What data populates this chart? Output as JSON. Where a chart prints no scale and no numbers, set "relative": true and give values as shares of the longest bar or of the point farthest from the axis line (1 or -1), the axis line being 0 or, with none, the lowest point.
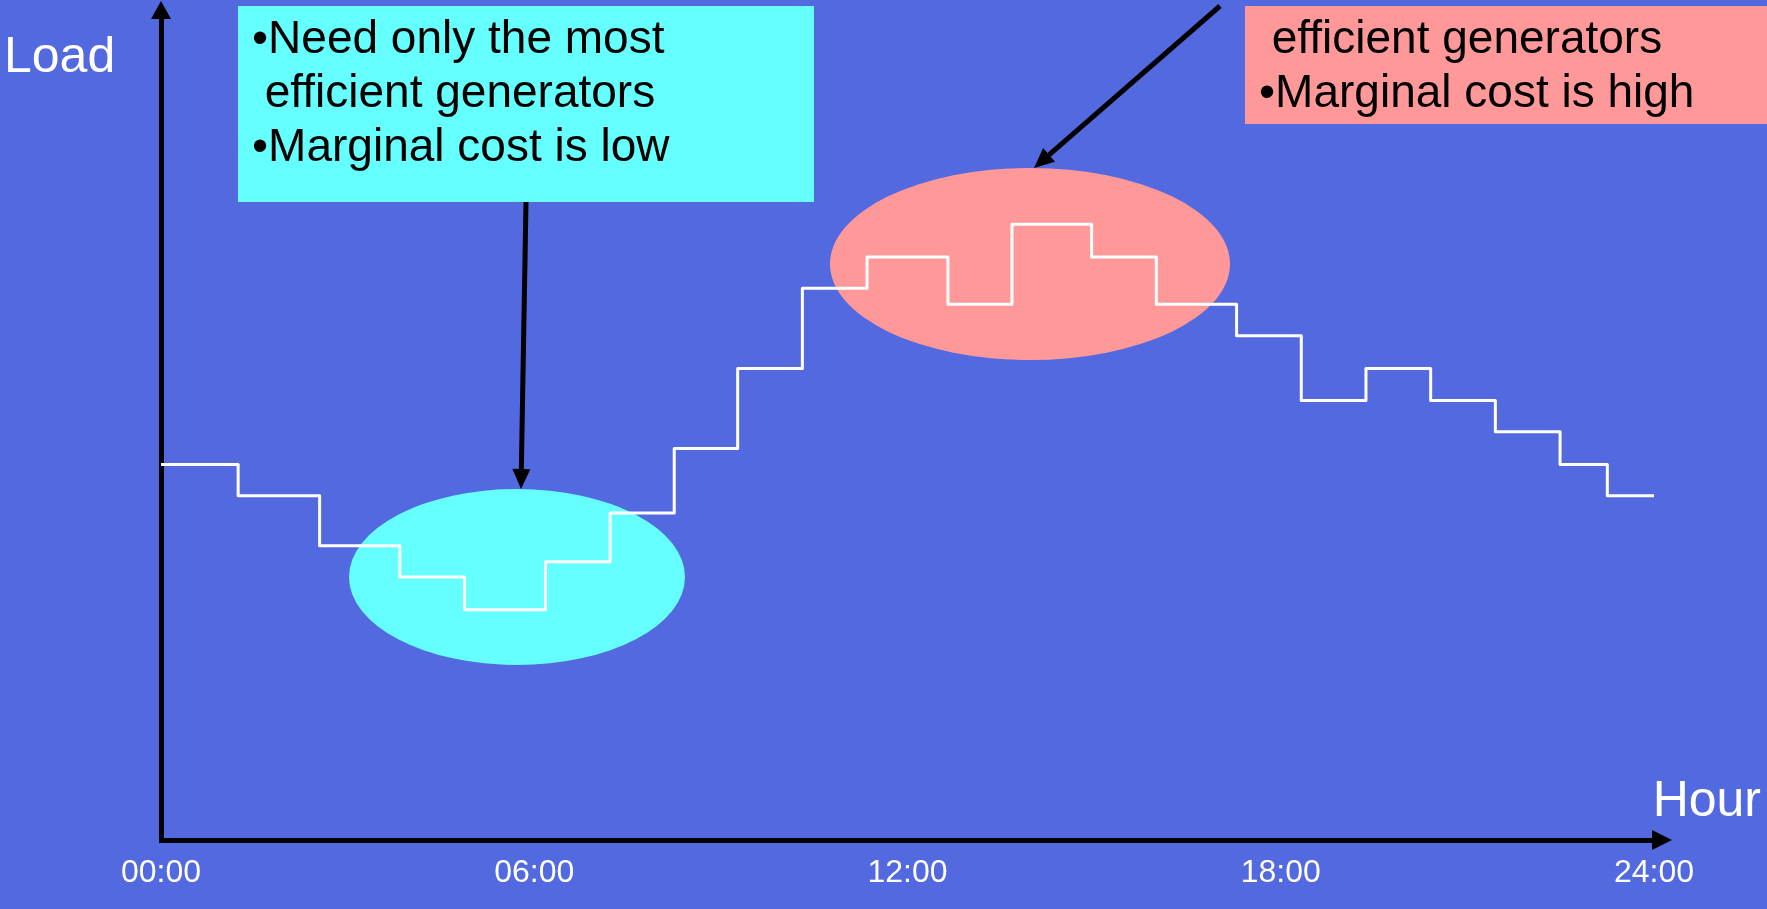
{
  "chart_data": {
    "type": "step",
    "xlabel": "Hour",
    "ylabel": "Load",
    "relative": true,
    "x": [
      0,
      1.24,
      2.55,
      3.84,
      4.88,
      6.18,
      7.22,
      8.25,
      9.27,
      10.31,
      11.35,
      12.65,
      13.68,
      14.96,
      16.0,
      17.29,
      18.33,
      19.37,
      20.41,
      21.45,
      22.49,
      23.25,
      24
    ],
    "xlim": [
      0,
      24
    ],
    "xticks": [
      {
        "value": 0,
        "label": "00:00"
      },
      {
        "value": 6,
        "label": "06:00"
      },
      {
        "value": 12,
        "label": "12:00"
      },
      {
        "value": 18,
        "label": "18:00"
      },
      {
        "value": 24,
        "label": "24:00"
      }
    ],
    "series": [
      {
        "color": "#ffffff",
        "values": [
          0.61,
          0.559,
          0.478,
          0.427,
          0.374,
          0.452,
          0.531,
          0.636,
          0.766,
          0.896,
          0.947,
          0.87,
          1,
          0.947,
          0.87,
          0.819,
          0.714,
          0.766,
          0.714,
          0.663,
          0.61,
          0.559,
          0.559
        ]
      }
    ],
    "annotations": [
      "•Need only the most\n efficient generators\n•Marginal cost is low",
      " efficient generators\n•Marginal cost is high"
    ],
    "grid": false,
    "legend": false,
    "marker": "none",
    "line_style": "solid"
  }
}
